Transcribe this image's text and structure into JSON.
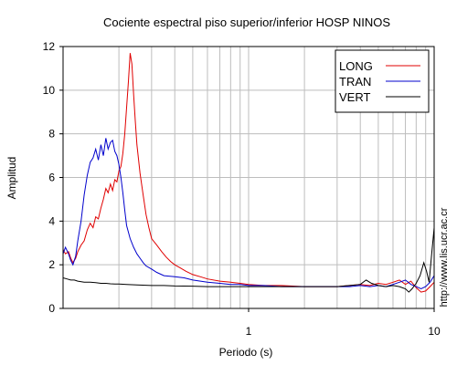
{
  "chart_data": {
    "type": "line",
    "title": "Cociente espectral piso superior/inferior  HOSP NINOS",
    "xlabel": "Periodo (s)",
    "ylabel": "Amplitud",
    "x_scale": "log",
    "xlim": [
      0.1,
      10
    ],
    "ylim": [
      0,
      12
    ],
    "x_ticks": [
      {
        "value": 1,
        "label": "1"
      },
      {
        "value": 10,
        "label": "10"
      }
    ],
    "y_ticks": [
      {
        "value": 0,
        "label": "0"
      },
      {
        "value": 2,
        "label": "2"
      },
      {
        "value": 4,
        "label": "4"
      },
      {
        "value": 6,
        "label": "6"
      },
      {
        "value": 8,
        "label": "8"
      },
      {
        "value": 10,
        "label": "10"
      },
      {
        "value": 12,
        "label": "12"
      }
    ],
    "grid": true,
    "legend_position": "top-right",
    "credit": "http://www.lis.ucr.ac.cr",
    "series": [
      {
        "name": "LONG",
        "color": "#e00000",
        "points": [
          [
            0.1,
            2.7
          ],
          [
            0.103,
            2.5
          ],
          [
            0.107,
            2.6
          ],
          [
            0.11,
            2.3
          ],
          [
            0.113,
            2.1
          ],
          [
            0.117,
            2.3
          ],
          [
            0.12,
            2.6
          ],
          [
            0.125,
            2.9
          ],
          [
            0.13,
            3.1
          ],
          [
            0.135,
            3.6
          ],
          [
            0.14,
            3.9
          ],
          [
            0.145,
            3.7
          ],
          [
            0.15,
            4.2
          ],
          [
            0.155,
            4.1
          ],
          [
            0.16,
            4.6
          ],
          [
            0.165,
            5.0
          ],
          [
            0.17,
            5.5
          ],
          [
            0.175,
            5.3
          ],
          [
            0.18,
            5.7
          ],
          [
            0.185,
            5.4
          ],
          [
            0.19,
            5.9
          ],
          [
            0.195,
            5.8
          ],
          [
            0.2,
            6.3
          ],
          [
            0.205,
            6.5
          ],
          [
            0.21,
            7.1
          ],
          [
            0.215,
            8.0
          ],
          [
            0.22,
            9.2
          ],
          [
            0.225,
            10.4
          ],
          [
            0.23,
            11.7
          ],
          [
            0.235,
            11.2
          ],
          [
            0.24,
            9.8
          ],
          [
            0.245,
            8.6
          ],
          [
            0.25,
            7.5
          ],
          [
            0.26,
            6.2
          ],
          [
            0.27,
            5.2
          ],
          [
            0.28,
            4.3
          ],
          [
            0.29,
            3.7
          ],
          [
            0.3,
            3.2
          ],
          [
            0.32,
            2.9
          ],
          [
            0.34,
            2.6
          ],
          [
            0.36,
            2.35
          ],
          [
            0.38,
            2.15
          ],
          [
            0.4,
            2.0
          ],
          [
            0.43,
            1.85
          ],
          [
            0.46,
            1.7
          ],
          [
            0.5,
            1.55
          ],
          [
            0.55,
            1.45
          ],
          [
            0.6,
            1.35
          ],
          [
            0.7,
            1.25
          ],
          [
            0.8,
            1.2
          ],
          [
            0.9,
            1.15
          ],
          [
            1.0,
            1.1
          ],
          [
            1.2,
            1.05
          ],
          [
            1.5,
            1.05
          ],
          [
            2.0,
            1.0
          ],
          [
            2.5,
            1.0
          ],
          [
            3.0,
            1.0
          ],
          [
            3.5,
            1.05
          ],
          [
            4.0,
            1.1
          ],
          [
            4.5,
            1.05
          ],
          [
            5.0,
            1.15
          ],
          [
            5.5,
            1.1
          ],
          [
            6.0,
            1.2
          ],
          [
            6.5,
            1.3
          ],
          [
            7.0,
            1.1
          ],
          [
            7.5,
            1.25
          ],
          [
            8.0,
            0.95
          ],
          [
            8.5,
            0.75
          ],
          [
            9.0,
            0.8
          ],
          [
            9.5,
            1.0
          ],
          [
            10.0,
            1.2
          ]
        ]
      },
      {
        "name": "TRAN",
        "color": "#0000cc",
        "points": [
          [
            0.1,
            2.5
          ],
          [
            0.103,
            2.8
          ],
          [
            0.107,
            2.5
          ],
          [
            0.11,
            2.2
          ],
          [
            0.113,
            2.0
          ],
          [
            0.117,
            2.4
          ],
          [
            0.12,
            3.1
          ],
          [
            0.125,
            4.0
          ],
          [
            0.13,
            5.2
          ],
          [
            0.135,
            6.1
          ],
          [
            0.14,
            6.7
          ],
          [
            0.145,
            6.9
          ],
          [
            0.15,
            7.3
          ],
          [
            0.155,
            6.8
          ],
          [
            0.16,
            7.5
          ],
          [
            0.165,
            7.0
          ],
          [
            0.17,
            7.8
          ],
          [
            0.175,
            7.3
          ],
          [
            0.18,
            7.6
          ],
          [
            0.185,
            7.7
          ],
          [
            0.19,
            7.2
          ],
          [
            0.195,
            7.0
          ],
          [
            0.2,
            6.6
          ],
          [
            0.205,
            6.0
          ],
          [
            0.21,
            5.3
          ],
          [
            0.215,
            4.5
          ],
          [
            0.22,
            3.8
          ],
          [
            0.23,
            3.2
          ],
          [
            0.24,
            2.8
          ],
          [
            0.25,
            2.5
          ],
          [
            0.26,
            2.3
          ],
          [
            0.27,
            2.1
          ],
          [
            0.28,
            1.95
          ],
          [
            0.3,
            1.8
          ],
          [
            0.32,
            1.65
          ],
          [
            0.35,
            1.5
          ],
          [
            0.4,
            1.45
          ],
          [
            0.45,
            1.4
          ],
          [
            0.5,
            1.3
          ],
          [
            0.55,
            1.25
          ],
          [
            0.6,
            1.2
          ],
          [
            0.7,
            1.15
          ],
          [
            0.8,
            1.1
          ],
          [
            0.9,
            1.1
          ],
          [
            1.0,
            1.05
          ],
          [
            1.2,
            1.05
          ],
          [
            1.5,
            1.0
          ],
          [
            2.0,
            1.0
          ],
          [
            2.5,
            1.0
          ],
          [
            3.0,
            1.0
          ],
          [
            3.5,
            1.0
          ],
          [
            4.0,
            1.05
          ],
          [
            4.5,
            1.0
          ],
          [
            5.0,
            1.05
          ],
          [
            5.5,
            1.0
          ],
          [
            6.0,
            1.1
          ],
          [
            6.5,
            1.2
          ],
          [
            7.0,
            1.3
          ],
          [
            7.5,
            1.1
          ],
          [
            8.0,
            1.0
          ],
          [
            8.5,
            0.9
          ],
          [
            9.0,
            1.0
          ],
          [
            9.5,
            1.2
          ],
          [
            10.0,
            1.5
          ]
        ]
      },
      {
        "name": "VERT",
        "color": "#000000",
        "points": [
          [
            0.1,
            1.4
          ],
          [
            0.105,
            1.35
          ],
          [
            0.11,
            1.3
          ],
          [
            0.115,
            1.3
          ],
          [
            0.12,
            1.25
          ],
          [
            0.13,
            1.2
          ],
          [
            0.14,
            1.2
          ],
          [
            0.15,
            1.18
          ],
          [
            0.16,
            1.15
          ],
          [
            0.17,
            1.15
          ],
          [
            0.18,
            1.13
          ],
          [
            0.19,
            1.12
          ],
          [
            0.2,
            1.12
          ],
          [
            0.22,
            1.1
          ],
          [
            0.25,
            1.08
          ],
          [
            0.3,
            1.05
          ],
          [
            0.35,
            1.05
          ],
          [
            0.4,
            1.03
          ],
          [
            0.5,
            1.02
          ],
          [
            0.6,
            1.0
          ],
          [
            0.7,
            1.0
          ],
          [
            0.8,
            1.0
          ],
          [
            1.0,
            1.0
          ],
          [
            1.5,
            1.0
          ],
          [
            2.0,
            1.0
          ],
          [
            2.5,
            1.0
          ],
          [
            3.0,
            1.0
          ],
          [
            3.5,
            1.05
          ],
          [
            4.0,
            1.1
          ],
          [
            4.3,
            1.3
          ],
          [
            4.6,
            1.15
          ],
          [
            5.0,
            1.05
          ],
          [
            5.5,
            1.0
          ],
          [
            6.0,
            1.05
          ],
          [
            6.5,
            1.0
          ],
          [
            7.0,
            0.9
          ],
          [
            7.3,
            0.75
          ],
          [
            7.6,
            0.9
          ],
          [
            8.0,
            1.15
          ],
          [
            8.4,
            1.5
          ],
          [
            8.8,
            2.1
          ],
          [
            9.1,
            1.7
          ],
          [
            9.4,
            1.2
          ],
          [
            9.7,
            2.5
          ],
          [
            10.0,
            3.7
          ]
        ]
      }
    ]
  }
}
